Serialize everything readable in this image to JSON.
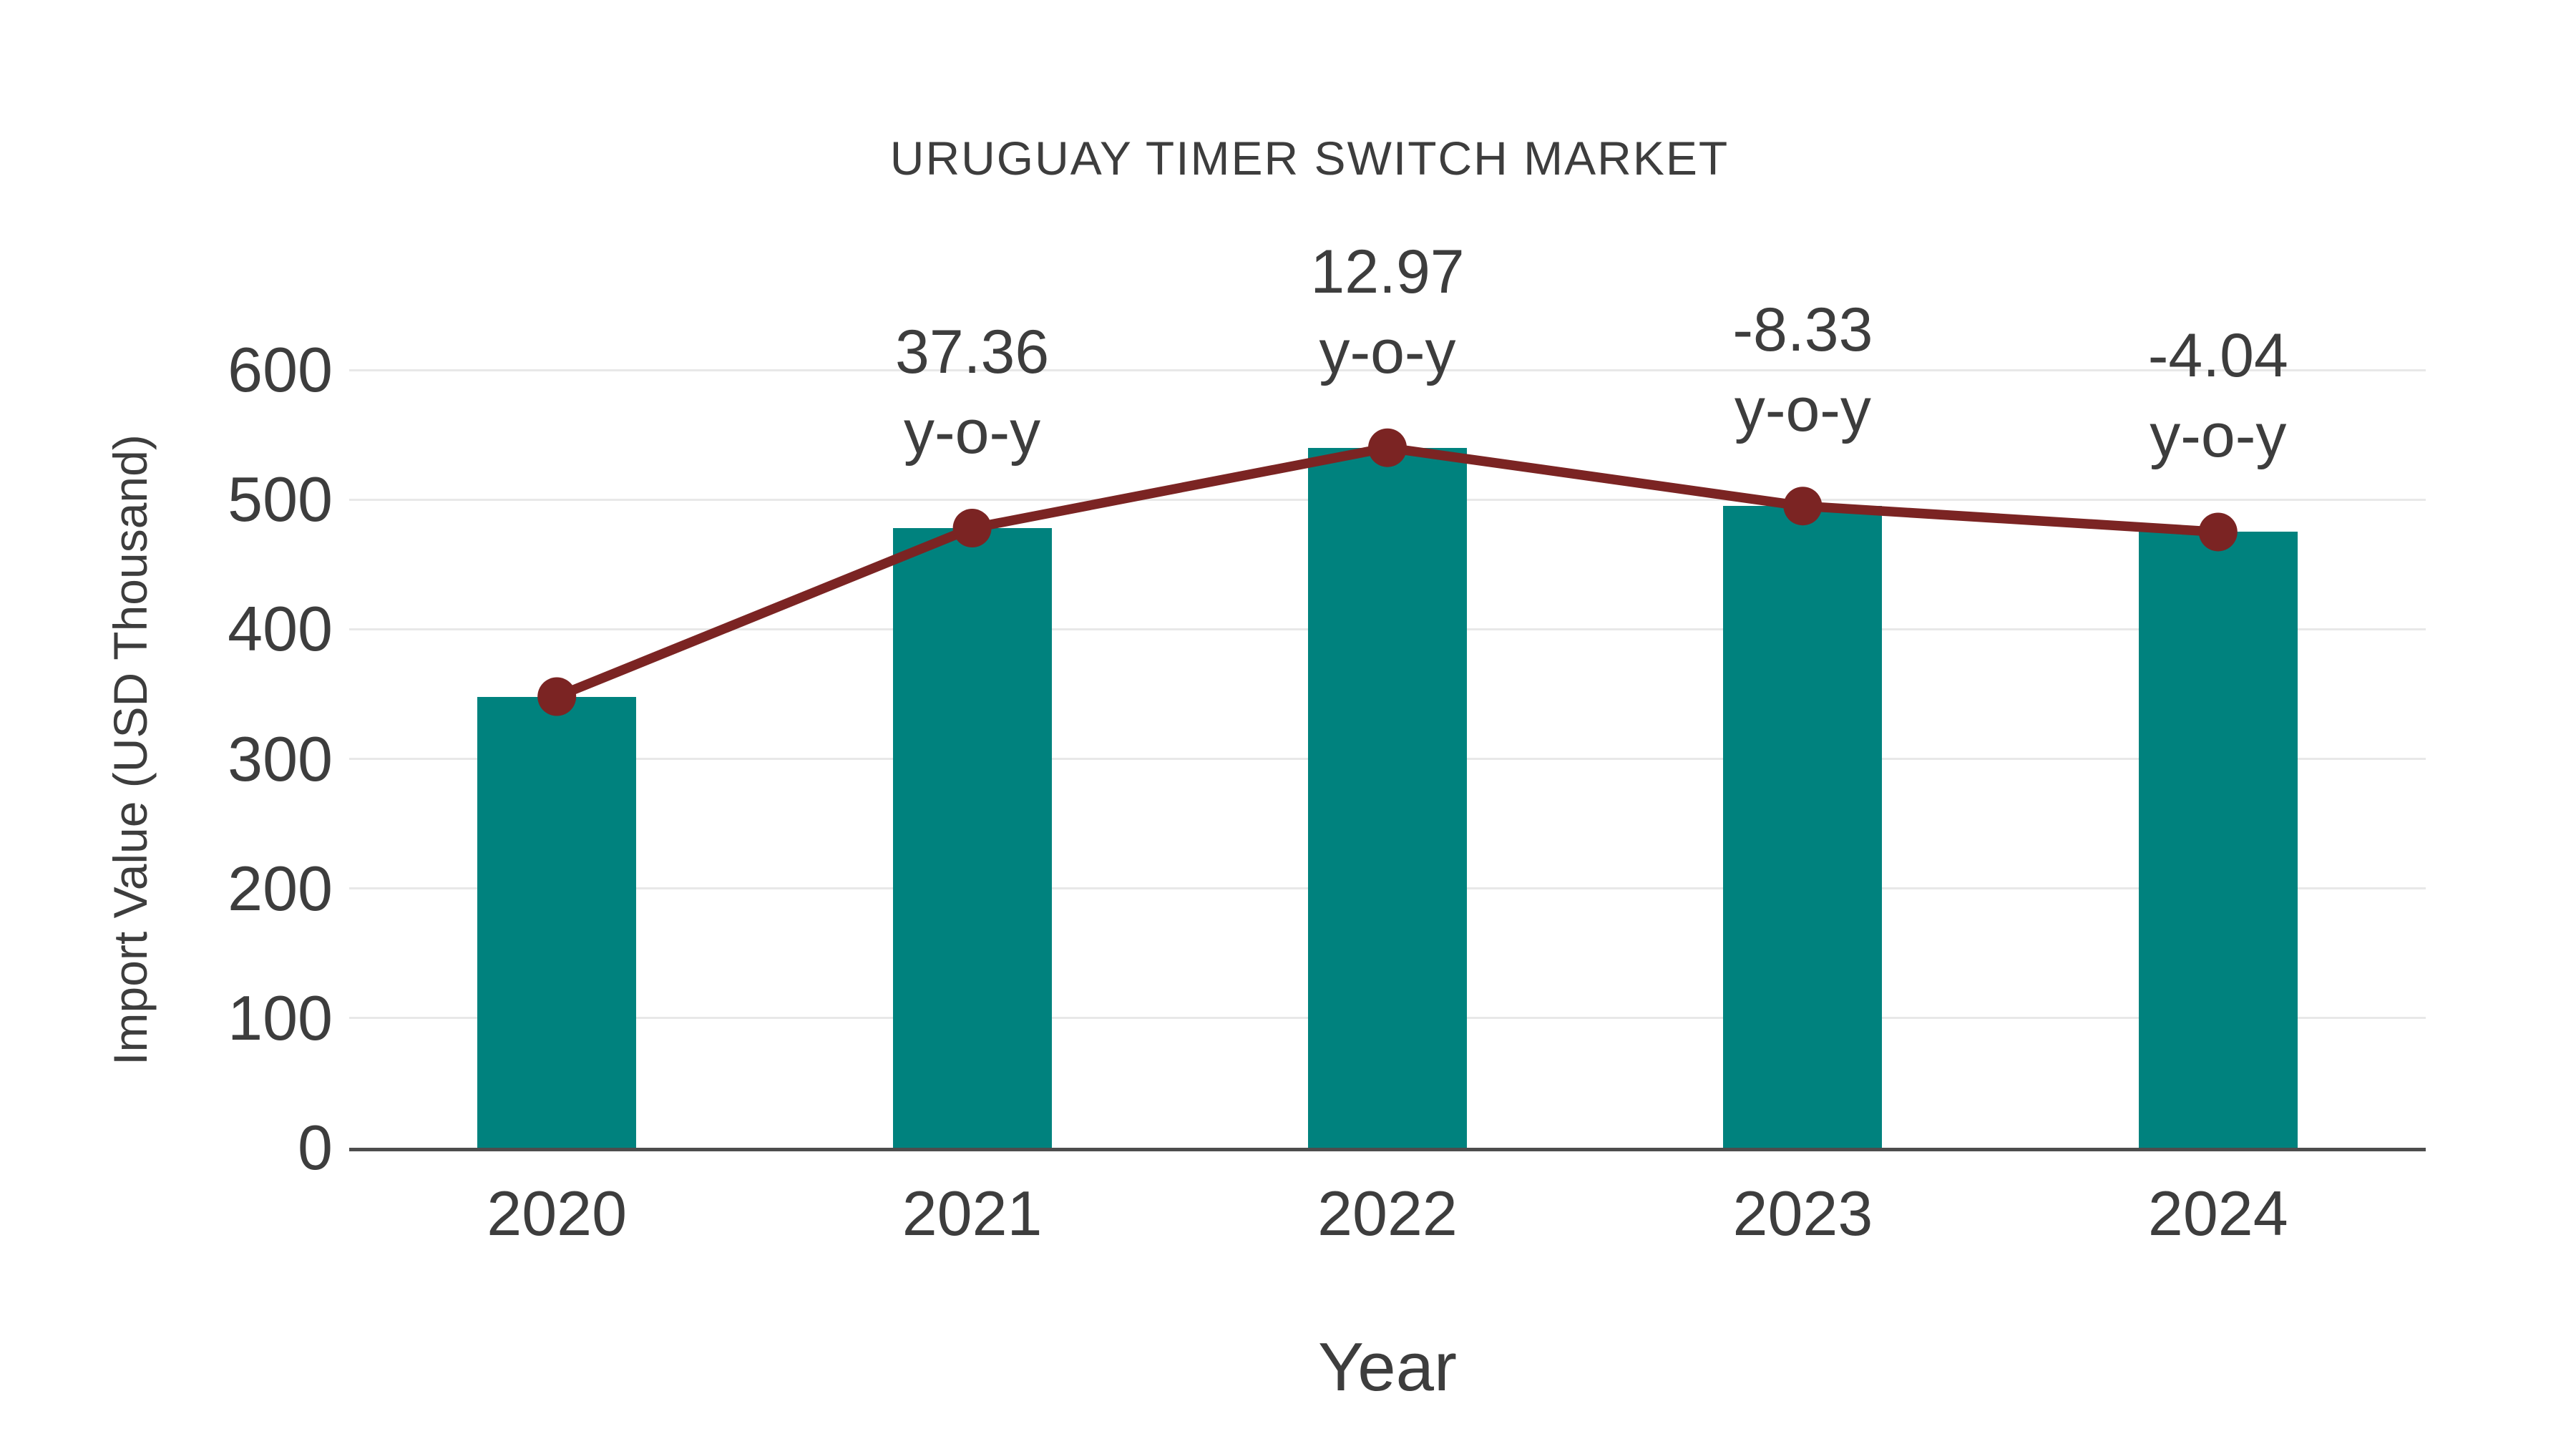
{
  "title": "URUGUAY TIMER SWITCH MARKET",
  "axes": {
    "x_label": "Year",
    "y_label": "Import Value (USD Thousand)"
  },
  "colors": {
    "bar": "#00827E",
    "line": "#7B2423",
    "marker": "#7B2423",
    "text": "#3D3D3D",
    "gridline": "#E8E8E8",
    "axis_line": "#4D4D4D",
    "background": "#FFFFFF"
  },
  "chart_data": {
    "type": "bar",
    "title": "URUGUAY TIMER SWITCH MARKET",
    "xlabel": "Year",
    "ylabel": "Import Value (USD Thousand)",
    "categories": [
      "2020",
      "2021",
      "2022",
      "2023",
      "2024"
    ],
    "series": [
      {
        "name": "Import Value (USD Thousand)",
        "type": "bar",
        "values": [
          348,
          478,
          540,
          495,
          475
        ]
      },
      {
        "name": "y-o-y trend",
        "type": "line",
        "values": [
          348,
          478,
          540,
          495,
          475
        ]
      }
    ],
    "annotations": [
      {
        "category": "2021",
        "value_label": "37.36",
        "suffix_label": "y-o-y"
      },
      {
        "category": "2022",
        "value_label": "12.97",
        "suffix_label": "y-o-y"
      },
      {
        "category": "2023",
        "value_label": "-8.33",
        "suffix_label": "y-o-y"
      },
      {
        "category": "2024",
        "value_label": "-4.04",
        "suffix_label": "y-o-y"
      }
    ],
    "yticks": [
      0,
      100,
      200,
      300,
      400,
      500,
      600
    ],
    "ylim": [
      0,
      600
    ],
    "grid": true,
    "legend_position": "none"
  }
}
